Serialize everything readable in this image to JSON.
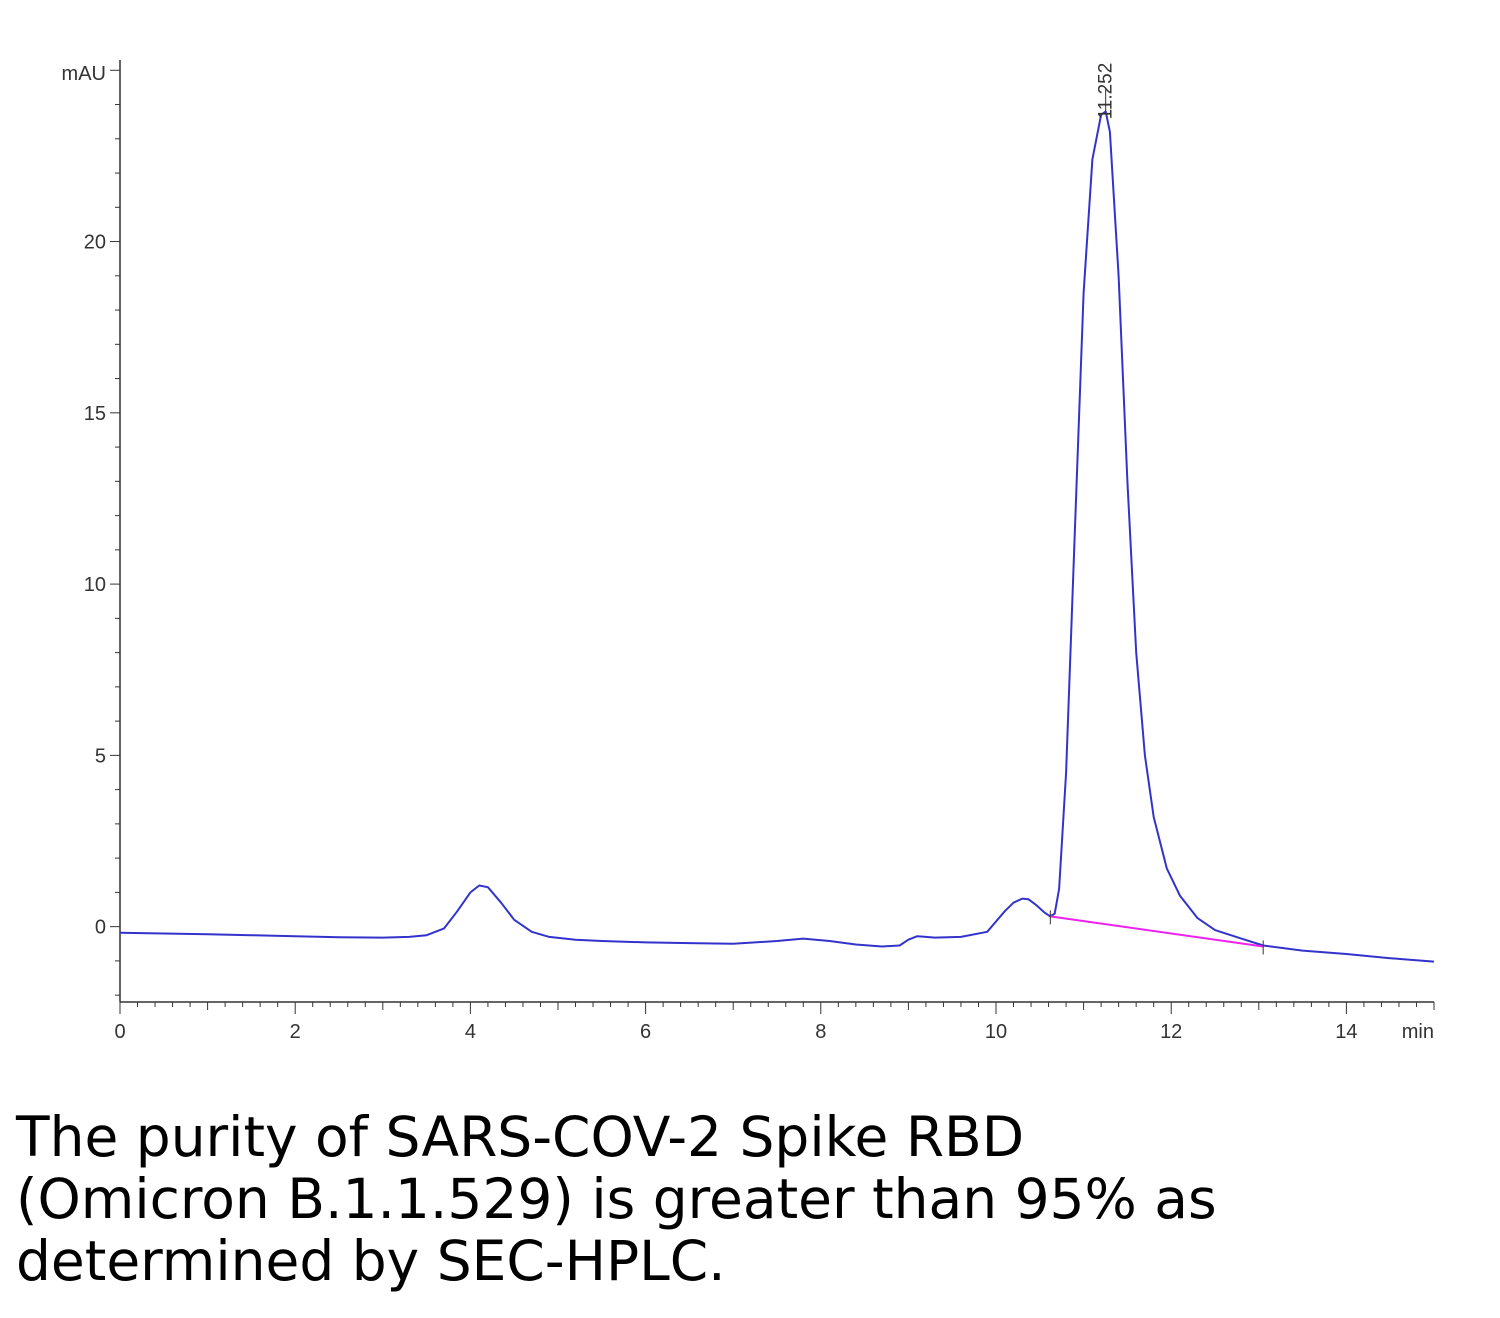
{
  "chart_data": {
    "type": "line",
    "xlabel": "min",
    "ylabel": "mAU",
    "xlim": [
      0,
      15
    ],
    "ylim": [
      -2.2,
      25.3
    ],
    "x_ticks": [
      "0",
      "2",
      "4",
      "6",
      "8",
      "10",
      "12",
      "14"
    ],
    "x_tick_values": [
      0,
      2,
      4,
      6,
      8,
      10,
      12,
      14
    ],
    "y_ticks": [
      "0",
      "5",
      "10",
      "15",
      "20"
    ],
    "y_tick_values": [
      0,
      5,
      10,
      15,
      20
    ],
    "grid": false,
    "legend": "none",
    "peak_label": "11.252",
    "peak_label_position": {
      "x": 11.252,
      "y": 23.8
    },
    "series": [
      {
        "color": "#3333cc",
        "x": [
          0,
          0.5,
          1,
          1.5,
          2,
          2.5,
          3,
          3.3,
          3.5,
          3.7,
          3.85,
          4.0,
          4.1,
          4.2,
          4.35,
          4.5,
          4.7,
          4.9,
          5.2,
          5.5,
          6,
          6.5,
          7,
          7.5,
          7.8,
          8.1,
          8.4,
          8.7,
          8.9,
          9.0,
          9.1,
          9.2,
          9.3,
          9.6,
          9.9,
          10.0,
          10.1,
          10.2,
          10.3,
          10.37,
          10.45,
          10.55,
          10.62,
          10.67,
          10.72,
          10.8,
          10.9,
          11.0,
          11.1,
          11.2,
          11.252,
          11.3,
          11.4,
          11.5,
          11.6,
          11.7,
          11.8,
          11.95,
          12.1,
          12.3,
          12.5,
          12.8,
          13.05,
          13.5,
          14,
          14.5,
          15
        ],
        "y": [
          -0.18,
          -0.2,
          -0.22,
          -0.25,
          -0.28,
          -0.31,
          -0.32,
          -0.3,
          -0.25,
          -0.05,
          0.45,
          1.0,
          1.2,
          1.15,
          0.7,
          0.2,
          -0.15,
          -0.3,
          -0.38,
          -0.42,
          -0.46,
          -0.48,
          -0.5,
          -0.42,
          -0.35,
          -0.42,
          -0.52,
          -0.58,
          -0.55,
          -0.38,
          -0.28,
          -0.3,
          -0.32,
          -0.3,
          -0.15,
          0.15,
          0.45,
          0.7,
          0.82,
          0.8,
          0.65,
          0.42,
          0.3,
          0.38,
          1.1,
          4.5,
          11.5,
          18.5,
          22.4,
          23.7,
          23.8,
          23.2,
          19.0,
          13.0,
          8.0,
          5.0,
          3.2,
          1.7,
          0.9,
          0.25,
          -0.1,
          -0.35,
          -0.55,
          -0.7,
          -0.8,
          -0.92,
          -1.02
        ]
      }
    ],
    "baseline": {
      "color": "#ee22ee",
      "x": [
        10.62,
        13.05
      ],
      "y": [
        0.3,
        -0.58
      ]
    }
  },
  "caption": {
    "line1": "The purity of SARS-COV-2 Spike RBD",
    "line2": "(Omicron B.1.1.529) is greater than 95% as",
    "line3": "determined by SEC-HPLC."
  }
}
